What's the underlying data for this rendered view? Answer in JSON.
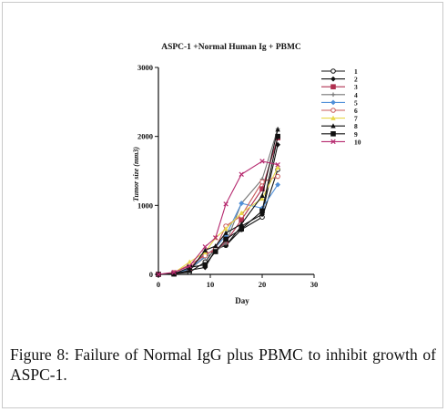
{
  "chart_data": {
    "type": "line",
    "title": "ASPC-1 +Normal Human Ig + PBMC",
    "xlabel": "Day",
    "ylabel": "Tumor size (mm3)",
    "xlim": [
      0,
      30
    ],
    "ylim": [
      0,
      3000
    ],
    "xticks": [
      0,
      10,
      20,
      30
    ],
    "yticks": [
      0,
      1000,
      2000,
      3000
    ],
    "grid": false,
    "legend_position": "right",
    "series": [
      {
        "name": "1",
        "color": "#111111",
        "marker": "open-circle",
        "x": [
          0,
          3,
          6,
          9,
          11,
          13,
          16,
          20,
          23
        ],
        "y": [
          0,
          10,
          30,
          180,
          380,
          420,
          650,
          830,
          1520
        ]
      },
      {
        "name": "2",
        "color": "#111111",
        "marker": "diamond",
        "x": [
          0,
          3,
          6,
          9,
          11,
          13,
          16,
          20,
          23
        ],
        "y": [
          0,
          5,
          60,
          100,
          360,
          420,
          700,
          870,
          1880
        ]
      },
      {
        "name": "3",
        "color": "#b03050",
        "marker": "square",
        "x": [
          0,
          3,
          6,
          9,
          11,
          13,
          16,
          20,
          23
        ],
        "y": [
          0,
          15,
          90,
          300,
          340,
          470,
          790,
          1240,
          1980
        ]
      },
      {
        "name": "4",
        "color": "#777777",
        "marker": "plus",
        "x": [
          0,
          3,
          6,
          9,
          11,
          13,
          16,
          20,
          23
        ],
        "y": [
          0,
          20,
          70,
          250,
          330,
          450,
          1030,
          1380,
          2110
        ]
      },
      {
        "name": "5",
        "color": "#4f8fd8",
        "marker": "diamond",
        "x": [
          0,
          3,
          6,
          9,
          11,
          13,
          16,
          20,
          23
        ],
        "y": [
          0,
          10,
          80,
          260,
          390,
          560,
          1030,
          960,
          1300
        ]
      },
      {
        "name": "6",
        "color": "#c85a5a",
        "marker": "open-circle",
        "x": [
          0,
          3,
          6,
          9,
          11,
          13,
          16,
          20,
          23
        ],
        "y": [
          0,
          25,
          140,
          270,
          380,
          700,
          850,
          1340,
          1420
        ]
      },
      {
        "name": "7",
        "color": "#e8d84a",
        "marker": "triangle",
        "x": [
          0,
          3,
          6,
          9,
          11,
          13,
          16,
          20,
          23
        ],
        "y": [
          0,
          20,
          180,
          320,
          530,
          660,
          890,
          1100,
          1550
        ]
      },
      {
        "name": "8",
        "color": "#111111",
        "marker": "triangle",
        "x": [
          0,
          3,
          6,
          9,
          11,
          13,
          16,
          20,
          23
        ],
        "y": [
          0,
          10,
          50,
          350,
          410,
          600,
          730,
          1140,
          2100
        ]
      },
      {
        "name": "9",
        "color": "#111111",
        "marker": "filled-square",
        "x": [
          0,
          3,
          6,
          9,
          11,
          13,
          16,
          20,
          23
        ],
        "y": [
          0,
          5,
          100,
          140,
          330,
          510,
          660,
          920,
          2000
        ]
      },
      {
        "name": "10",
        "color": "#b5286e",
        "marker": "cross",
        "x": [
          0,
          3,
          6,
          9,
          11,
          13,
          16,
          20,
          23
        ],
        "y": [
          0,
          30,
          120,
          400,
          530,
          1020,
          1450,
          1640,
          1590
        ]
      }
    ]
  },
  "caption": {
    "label": "Figure 8:",
    "text": " Failure of Normal IgG plus PBMC to inhibit growth of ASPC-1."
  }
}
